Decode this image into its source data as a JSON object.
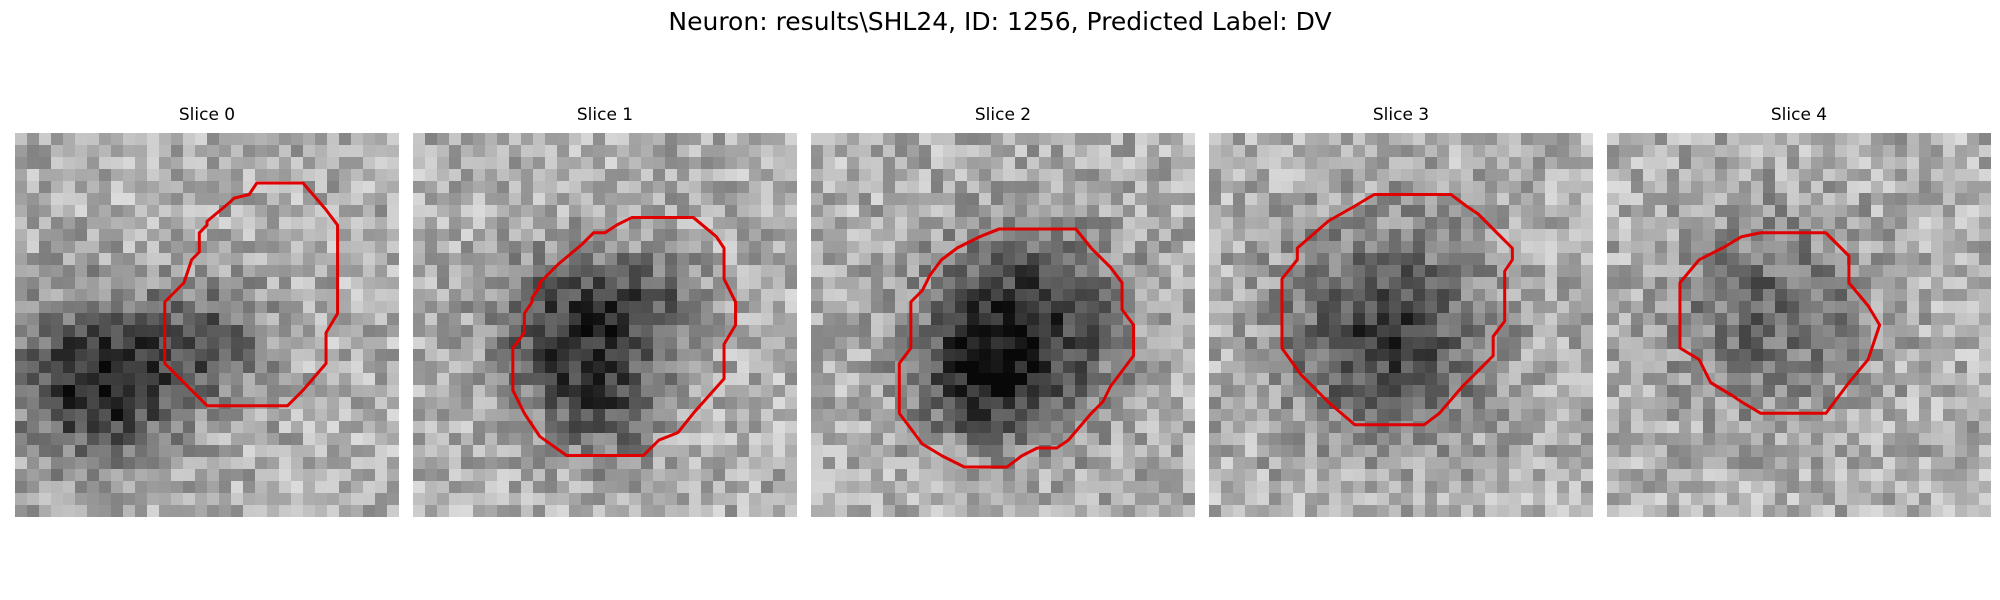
{
  "figure": {
    "title": "Neuron: results\\SHL24, ID: 1256, Predicted Label: DV",
    "contour_color": "#e00000"
  },
  "panels": [
    {
      "title": "Slice 0",
      "dark_blobs": [
        [
          0.22,
          0.65,
          0.14,
          1.0
        ],
        [
          0.5,
          0.55,
          0.11,
          0.55
        ]
      ],
      "contour": [
        [
          0.63,
          0.13
        ],
        [
          0.75,
          0.13
        ],
        [
          0.81,
          0.2
        ],
        [
          0.84,
          0.24
        ],
        [
          0.84,
          0.47
        ],
        [
          0.81,
          0.52
        ],
        [
          0.81,
          0.6
        ],
        [
          0.75,
          0.67
        ],
        [
          0.71,
          0.71
        ],
        [
          0.67,
          0.71
        ],
        [
          0.5,
          0.71
        ],
        [
          0.44,
          0.65
        ],
        [
          0.39,
          0.6
        ],
        [
          0.39,
          0.44
        ],
        [
          0.44,
          0.39
        ],
        [
          0.46,
          0.33
        ],
        [
          0.48,
          0.31
        ],
        [
          0.48,
          0.26
        ],
        [
          0.5,
          0.24
        ],
        [
          0.5,
          0.23
        ],
        [
          0.56,
          0.18
        ],
        [
          0.57,
          0.17
        ],
        [
          0.61,
          0.16
        ],
        [
          0.63,
          0.13
        ]
      ]
    },
    {
      "title": "Slice 1",
      "dark_blobs": [
        [
          0.4,
          0.52,
          0.13,
          0.8
        ],
        [
          0.62,
          0.45,
          0.1,
          0.5
        ],
        [
          0.5,
          0.72,
          0.1,
          0.5
        ]
      ],
      "contour": [
        [
          0.57,
          0.22
        ],
        [
          0.73,
          0.22
        ],
        [
          0.79,
          0.27
        ],
        [
          0.81,
          0.3
        ],
        [
          0.81,
          0.38
        ],
        [
          0.84,
          0.44
        ],
        [
          0.84,
          0.5
        ],
        [
          0.81,
          0.55
        ],
        [
          0.81,
          0.64
        ],
        [
          0.73,
          0.73
        ],
        [
          0.69,
          0.78
        ],
        [
          0.64,
          0.8
        ],
        [
          0.6,
          0.84
        ],
        [
          0.4,
          0.84
        ],
        [
          0.33,
          0.79
        ],
        [
          0.29,
          0.73
        ],
        [
          0.26,
          0.67
        ],
        [
          0.26,
          0.56
        ],
        [
          0.29,
          0.52
        ],
        [
          0.29,
          0.47
        ],
        [
          0.31,
          0.44
        ],
        [
          0.31,
          0.43
        ],
        [
          0.33,
          0.4
        ],
        [
          0.33,
          0.39
        ],
        [
          0.38,
          0.34
        ],
        [
          0.44,
          0.29
        ],
        [
          0.47,
          0.26
        ],
        [
          0.5,
          0.26
        ],
        [
          0.53,
          0.24
        ],
        [
          0.57,
          0.22
        ]
      ]
    },
    {
      "title": "Slice 2",
      "dark_blobs": [
        [
          0.55,
          0.52,
          0.17,
          0.95
        ],
        [
          0.42,
          0.65,
          0.1,
          0.5
        ]
      ],
      "contour": [
        [
          0.49,
          0.25
        ],
        [
          0.69,
          0.25
        ],
        [
          0.73,
          0.3
        ],
        [
          0.78,
          0.35
        ],
        [
          0.81,
          0.39
        ],
        [
          0.81,
          0.46
        ],
        [
          0.84,
          0.5
        ],
        [
          0.84,
          0.58
        ],
        [
          0.81,
          0.62
        ],
        [
          0.78,
          0.66
        ],
        [
          0.76,
          0.7
        ],
        [
          0.73,
          0.73
        ],
        [
          0.67,
          0.8
        ],
        [
          0.64,
          0.82
        ],
        [
          0.59,
          0.82
        ],
        [
          0.55,
          0.84
        ],
        [
          0.51,
          0.87
        ],
        [
          0.4,
          0.87
        ],
        [
          0.34,
          0.84
        ],
        [
          0.29,
          0.81
        ],
        [
          0.26,
          0.77
        ],
        [
          0.23,
          0.73
        ],
        [
          0.23,
          0.6
        ],
        [
          0.26,
          0.56
        ],
        [
          0.26,
          0.44
        ],
        [
          0.29,
          0.41
        ],
        [
          0.31,
          0.37
        ],
        [
          0.34,
          0.33
        ],
        [
          0.38,
          0.3
        ],
        [
          0.44,
          0.27
        ],
        [
          0.49,
          0.25
        ]
      ]
    },
    {
      "title": "Slice 3",
      "dark_blobs": [
        [
          0.46,
          0.52,
          0.18,
          0.8
        ]
      ],
      "contour": [
        [
          0.43,
          0.16
        ],
        [
          0.63,
          0.16
        ],
        [
          0.67,
          0.19
        ],
        [
          0.7,
          0.21
        ],
        [
          0.75,
          0.26
        ],
        [
          0.79,
          0.3
        ],
        [
          0.79,
          0.33
        ],
        [
          0.77,
          0.36
        ],
        [
          0.77,
          0.43
        ],
        [
          0.77,
          0.49
        ],
        [
          0.74,
          0.53
        ],
        [
          0.74,
          0.58
        ],
        [
          0.7,
          0.62
        ],
        [
          0.66,
          0.66
        ],
        [
          0.6,
          0.73
        ],
        [
          0.56,
          0.76
        ],
        [
          0.38,
          0.76
        ],
        [
          0.31,
          0.7
        ],
        [
          0.24,
          0.63
        ],
        [
          0.19,
          0.56
        ],
        [
          0.19,
          0.38
        ],
        [
          0.23,
          0.33
        ],
        [
          0.23,
          0.3
        ],
        [
          0.31,
          0.23
        ],
        [
          0.38,
          0.19
        ],
        [
          0.43,
          0.16
        ]
      ]
    },
    {
      "title": "Slice 4",
      "dark_blobs": [
        [
          0.42,
          0.47,
          0.17,
          0.5
        ]
      ],
      "contour": [
        [
          0.4,
          0.26
        ],
        [
          0.57,
          0.26
        ],
        [
          0.63,
          0.32
        ],
        [
          0.63,
          0.39
        ],
        [
          0.68,
          0.45
        ],
        [
          0.71,
          0.5
        ],
        [
          0.68,
          0.59
        ],
        [
          0.63,
          0.65
        ],
        [
          0.57,
          0.73
        ],
        [
          0.4,
          0.73
        ],
        [
          0.35,
          0.7
        ],
        [
          0.32,
          0.68
        ],
        [
          0.27,
          0.65
        ],
        [
          0.24,
          0.59
        ],
        [
          0.19,
          0.56
        ],
        [
          0.19,
          0.39
        ],
        [
          0.24,
          0.33
        ],
        [
          0.3,
          0.3
        ],
        [
          0.35,
          0.27
        ],
        [
          0.4,
          0.26
        ]
      ]
    }
  ]
}
